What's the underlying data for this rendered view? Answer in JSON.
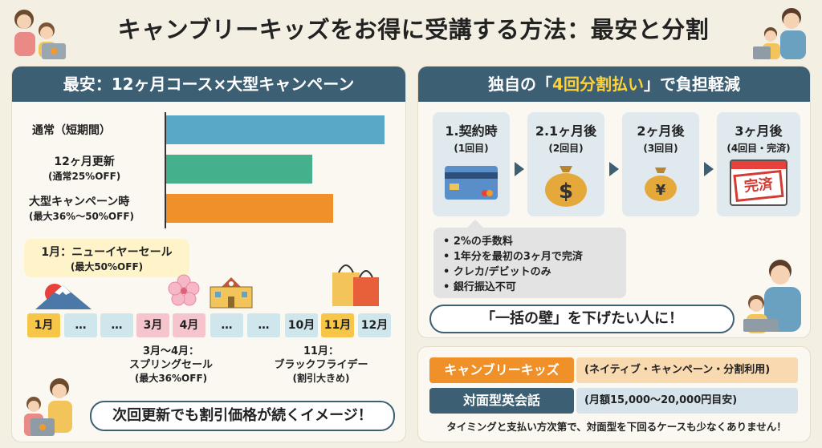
{
  "title": "キャンブリーキッズをお得に受講する方法：最安と分割",
  "left": {
    "heading": "最安：12ヶ月コース×大型キャンペーン",
    "bars": [
      {
        "label": "通常（短期間）",
        "sub": "",
        "color": "#5aa8c8"
      },
      {
        "label": "12ヶ月更新",
        "sub": "(通常25%OFF)",
        "color": "#45b08c"
      },
      {
        "label": "大型キャンペーン時",
        "sub": "(最大36%〜50%OFF)",
        "color": "#ef9028"
      }
    ],
    "new_year": {
      "line1": "1月：ニューイヤーセール",
      "line2": "(最大50%OFF)"
    },
    "months": [
      "1月",
      "…",
      "…",
      "3月",
      "4月",
      "…",
      "…",
      "10月",
      "11月",
      "12月"
    ],
    "spring": {
      "line1": "3月〜4月：",
      "line2": "スプリングセール",
      "line3": "(最大36%OFF)"
    },
    "black_friday": {
      "line1": "11月：",
      "line2": "ブラックフライデー",
      "line3": "(割引大きめ)"
    },
    "bottom": "次回更新でも割引価格が続くイメージ！"
  },
  "right": {
    "heading_pre": "独自の「",
    "heading_hl": "4回分割払い",
    "heading_post": "」で負担軽減",
    "steps": [
      {
        "t1": "1.契約時",
        "t2": "(1回目)"
      },
      {
        "t1": "2.1ヶ月後",
        "t2": "(2回目)"
      },
      {
        "t1": "2ヶ月後",
        "t2": "(3回目)"
      },
      {
        "t1": "3ヶ月後",
        "t2": "(4回目・完済)"
      }
    ],
    "stamp": "完済",
    "notes": [
      "• 2%の手数料",
      "• 1年分を最初の3ヶ月で完済",
      "• クレカ/デビットのみ",
      "• 銀行振込不可"
    ],
    "wall": "「一括の壁」を下げたい人に！"
  },
  "compare": {
    "row1_label": "キャンブリーキッズ",
    "row1_value": "(ネイティブ・キャンペーン・分割利用)",
    "row2_label": "対面型英会話",
    "row2_value": "(月額15,000〜20,000円目安)",
    "footer": "タイミングと支払い方次第で、対面型を下回るケースも少なくありません！"
  }
}
